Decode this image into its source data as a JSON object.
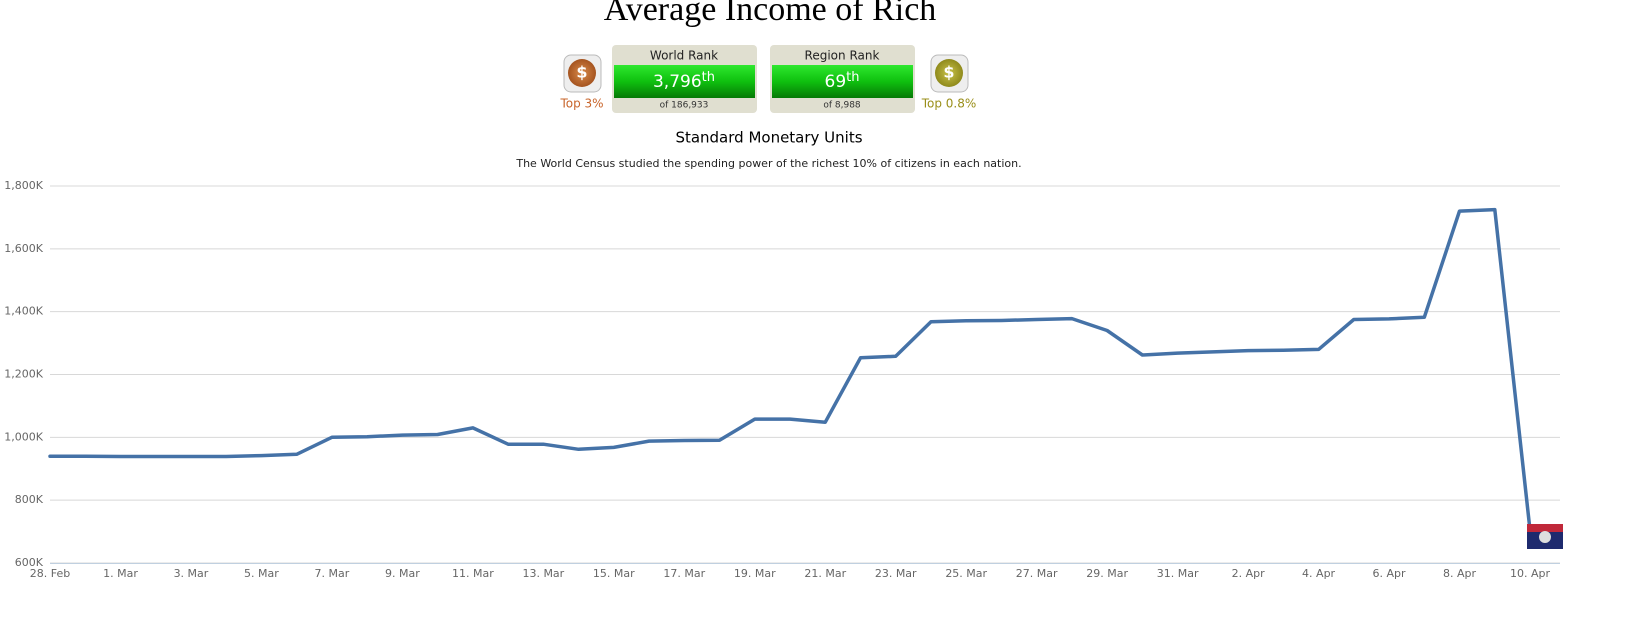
{
  "title": "Average Income of Rich",
  "ranks": [
    {
      "label": "World Rank",
      "rank": "3,796",
      "suffix": "th",
      "of": "of 186,933",
      "top": "Top 3%"
    },
    {
      "label": "Region Rank",
      "rank": "69",
      "suffix": "th",
      "of": "of 8,988",
      "top": "Top 0.8%"
    }
  ],
  "chart_data": {
    "type": "line",
    "title": "Standard Monetary Units",
    "subtitle": "The World Census studied the spending power of the richest 10% of citizens in each nation.",
    "categories": [
      "28. Feb",
      null,
      "1. Mar",
      null,
      "3. Mar",
      null,
      "5. Mar",
      null,
      "7. Mar",
      null,
      "9. Mar",
      null,
      "11. Mar",
      null,
      "13. Mar",
      null,
      "15. Mar",
      null,
      "17. Mar",
      null,
      "19. Mar",
      null,
      "21. Mar",
      null,
      "23. Mar",
      null,
      "25. Mar",
      null,
      "27. Mar",
      null,
      "29. Mar",
      null,
      "31. Mar",
      null,
      "2. Apr",
      null,
      "4. Apr",
      null,
      "6. Apr",
      null,
      "8. Apr",
      null,
      "10. Apr"
    ],
    "series": [
      {
        "color": "#4572a7",
        "values": [
          940000,
          940000,
          939000,
          939000,
          939000,
          939000,
          942000,
          946000,
          1000000,
          1002000,
          1007000,
          1009000,
          1030000,
          978000,
          978000,
          962000,
          968000,
          988000,
          990000,
          991000,
          1058000,
          1058000,
          1048000,
          1253000,
          1258000,
          1368000,
          1371000,
          1372000,
          1375000,
          1378000,
          1340000,
          1262000,
          1268000,
          1272000,
          1276000,
          1277000,
          1280000,
          1375000,
          1377000,
          1382000,
          1720000,
          1725000,
          705000
        ]
      }
    ],
    "ylim": [
      600000,
      1800000
    ],
    "yticks": [
      {
        "value": 600000,
        "label": "600K"
      },
      {
        "value": 800000,
        "label": "800K"
      },
      {
        "value": 1000000,
        "label": "1,000K"
      },
      {
        "value": 1200000,
        "label": "1,200K"
      },
      {
        "value": 1400000,
        "label": "1,400K"
      },
      {
        "value": 1600000,
        "label": "1,600K"
      },
      {
        "value": 1800000,
        "label": "1,800K"
      }
    ],
    "grid": true
  }
}
